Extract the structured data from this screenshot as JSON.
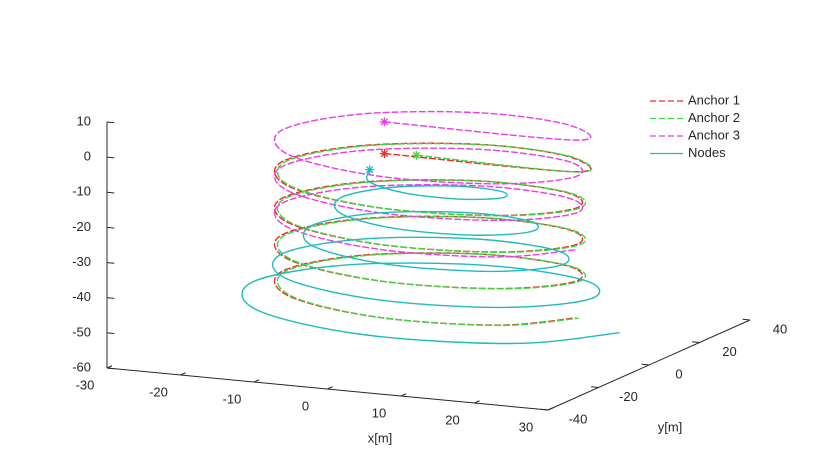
{
  "chart_data": {
    "type": "line3d",
    "xlabel": "x[m]",
    "ylabel": "y[m]",
    "xlim": [
      -30,
      30
    ],
    "xticks": [
      -30,
      -20,
      -10,
      0,
      10,
      20,
      30
    ],
    "ylim": [
      -40,
      40
    ],
    "yticks": [
      -40,
      -20,
      0,
      20,
      40
    ],
    "zlim": [
      -60,
      10
    ],
    "zticks": [
      -60,
      -50,
      -40,
      -30,
      -20,
      -10,
      0,
      10
    ],
    "legend": "northeast",
    "start_marker": "star",
    "series": [
      {
        "name": "Anchor 1",
        "color": "#ee2a2a",
        "line_style": "dashed",
        "x": [
          -6,
          20,
          14.1,
          0,
          -14.1,
          -20,
          -14.1,
          0,
          14.1,
          20,
          14.1,
          0,
          -14.1,
          -20,
          -14.1,
          0,
          14.1,
          20,
          14.1,
          0,
          -14.1,
          -20,
          -14.1,
          0,
          14.1,
          20,
          14.1,
          0,
          -14.1,
          -20,
          -14.1,
          0,
          14.1,
          20
        ],
        "y": [
          0,
          0,
          14.1,
          20,
          14.1,
          0,
          -14.1,
          -20,
          -14.1,
          0,
          14.1,
          20,
          14.1,
          0,
          -14.1,
          -20,
          -14.1,
          0,
          14.1,
          20,
          14.1,
          0,
          -14.1,
          -20,
          -14.1,
          0,
          14.1,
          20,
          14.1,
          0,
          -14.1,
          -20,
          -14.1,
          0
        ],
        "z": [
          -7,
          -7,
          -8.3,
          -9.6,
          -10.9,
          -12.2,
          -13.5,
          -14.8,
          -16.1,
          -17.4,
          -18.7,
          -20,
          -21.3,
          -22.6,
          -23.9,
          -25.2,
          -26.5,
          -27.8,
          -29.1,
          -30.4,
          -31.7,
          -33,
          -34.3,
          -35.6,
          -36.9,
          -38.2,
          -39.5,
          -40.8,
          -42.1,
          -43.4,
          -44.7,
          -46,
          -47.3,
          -48.6
        ]
      },
      {
        "name": "Anchor 2",
        "color": "#3fd63f",
        "line_style": "dashed",
        "x": [
          -2,
          20.4,
          14.5,
          0.4,
          -13.7,
          -19.6,
          -13.7,
          0.4,
          14.5,
          20.4,
          14.5,
          0.4,
          -13.7,
          -19.6,
          -13.7,
          0.4,
          14.5,
          20.4,
          14.5,
          0.4,
          -13.7,
          -19.6,
          -13.7,
          0.4,
          14.5,
          20.4,
          14.5,
          0.4,
          -13.7,
          -19.6,
          -13.7,
          0.4,
          14.5,
          20.4
        ],
        "y": [
          1,
          0,
          14.1,
          20,
          14.1,
          0,
          -14.1,
          -20,
          -14.1,
          0,
          14.1,
          20,
          14.1,
          0,
          -14.1,
          -20,
          -14.1,
          0,
          14.1,
          20,
          14.1,
          0,
          -14.1,
          -20,
          -14.1,
          0,
          14.1,
          20,
          14.1,
          0,
          -14.1,
          -20,
          -14.1,
          0
        ],
        "z": [
          -7,
          -7,
          -8.3,
          -9.6,
          -10.9,
          -12.2,
          -13.5,
          -14.8,
          -16.1,
          -17.4,
          -18.7,
          -20,
          -21.3,
          -22.6,
          -23.9,
          -25.2,
          -26.5,
          -27.8,
          -29.1,
          -30.4,
          -31.7,
          -33,
          -34.3,
          -35.6,
          -36.9,
          -38.2,
          -39.5,
          -40.8,
          -42.1,
          -43.4,
          -44.7,
          -46,
          -47.3,
          -48.6
        ]
      },
      {
        "name": "Anchor 3",
        "color": "#e83ee8",
        "line_style": "dashed",
        "x": [
          -6,
          20,
          14.1,
          0,
          -14.1,
          -20,
          -14.1,
          0,
          14.1,
          20,
          14.1,
          0,
          -14.1,
          -20,
          -14.1,
          0,
          14.1,
          20,
          14.1,
          0,
          -14.1,
          -20,
          -14.1,
          0,
          14.1,
          20
        ],
        "y": [
          0,
          0,
          14.1,
          20,
          14.1,
          0,
          -14.1,
          -20,
          -14.1,
          0,
          14.1,
          20,
          14.1,
          0,
          -14.1,
          -20,
          -14.1,
          0,
          14.1,
          20,
          14.1,
          0,
          -14.1,
          -20,
          -14.1,
          0
        ],
        "z": [
          2,
          2,
          0.7,
          -0.6,
          -1.9,
          -3.2,
          -4.5,
          -5.8,
          -7.1,
          -8.4,
          -9.7,
          -11,
          -12.3,
          -13.6,
          -14.9,
          -16.2,
          -17.5,
          -18.8,
          -20.1,
          -21.4,
          -22.7,
          -24,
          -25.3,
          -26.6,
          -27.9,
          -29.2
        ]
      },
      {
        "name": "Nodes",
        "color": "#1fbcbc",
        "line_style": "solid",
        "x": [
          -8,
          -6,
          0,
          6.7,
          10,
          7.4,
          0,
          -8.1,
          -12,
          -8.8,
          0,
          9.5,
          14,
          10.3,
          0,
          -11,
          -16,
          -11.7,
          0,
          12.4,
          18,
          13.1,
          0,
          -13.8,
          -20,
          -14.5,
          0,
          15.2,
          22,
          15.9,
          0,
          -16.6,
          -24,
          -17.3,
          0,
          18,
          26
        ],
        "y": [
          0,
          -6,
          -9,
          -6.7,
          0,
          7.4,
          11,
          8.1,
          0,
          -8.8,
          -13,
          -9.5,
          0,
          10.3,
          15,
          11,
          0,
          -11.7,
          -17,
          -12.4,
          0,
          13.1,
          19,
          13.8,
          0,
          -14.5,
          -21,
          -15.2,
          0,
          15.9,
          23,
          16.6,
          0,
          -17.3,
          -25,
          -18,
          0
        ],
        "z": [
          -12,
          -13.1,
          -14.2,
          -15.3,
          -16.4,
          -17.5,
          -18.6,
          -19.7,
          -20.8,
          -21.9,
          -23,
          -24.1,
          -25.2,
          -26.3,
          -27.4,
          -28.5,
          -29.6,
          -30.7,
          -31.8,
          -32.9,
          -34,
          -35.1,
          -36.2,
          -37.3,
          -38.4,
          -39.5,
          -40.6,
          -41.7,
          -42.8,
          -43.9,
          -45,
          -46.1,
          -47.2,
          -48.3,
          -49.4,
          -50.5,
          -51.6
        ]
      }
    ]
  }
}
